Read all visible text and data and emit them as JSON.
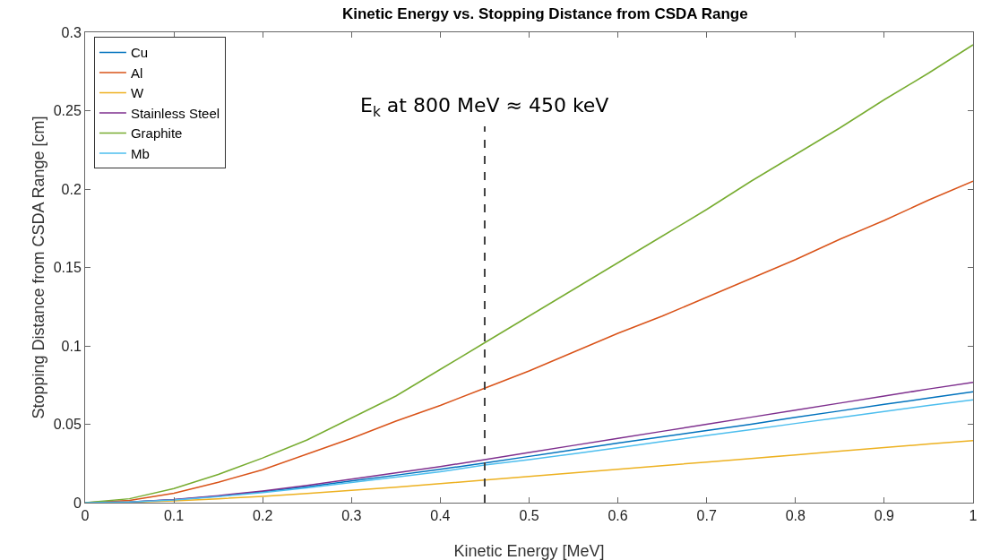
{
  "chart_data": {
    "type": "line",
    "title": "Kinetic Energy vs. Stopping Distance from CSDA Range",
    "xlabel": "Kinetic Energy [MeV]",
    "ylabel": "Stopping Distance from CSDA Range [cm]",
    "x": [
      0,
      0.05,
      0.1,
      0.15,
      0.2,
      0.25,
      0.3,
      0.35,
      0.4,
      0.45,
      0.5,
      0.55,
      0.6,
      0.65,
      0.7,
      0.75,
      0.8,
      0.85,
      0.9,
      0.95,
      1
    ],
    "series": [
      {
        "name": "Cu",
        "color": "#0072bd",
        "values": [
          0,
          0.0005,
          0.0019,
          0.0042,
          0.007,
          0.0102,
          0.0138,
          0.0175,
          0.0213,
          0.0253,
          0.0295,
          0.0337,
          0.038,
          0.042,
          0.046,
          0.05,
          0.0544,
          0.0585,
          0.0627,
          0.0667,
          0.0707
        ]
      },
      {
        "name": "Al",
        "color": "#d95319",
        "values": [
          0,
          0.0015,
          0.006,
          0.013,
          0.021,
          0.031,
          0.041,
          0.052,
          0.062,
          0.073,
          0.084,
          0.096,
          0.108,
          0.119,
          0.131,
          0.143,
          0.155,
          0.168,
          0.18,
          0.193,
          0.205
        ]
      },
      {
        "name": "W",
        "color": "#edb120",
        "values": [
          0,
          0.0003,
          0.0012,
          0.0025,
          0.004,
          0.0058,
          0.0078,
          0.0099,
          0.0121,
          0.0144,
          0.0167,
          0.019,
          0.0213,
          0.0236,
          0.0259,
          0.0282,
          0.0305,
          0.0328,
          0.0351,
          0.0374,
          0.0396
        ]
      },
      {
        "name": "Stainless Steel",
        "color": "#7e2f8e",
        "values": [
          0,
          0.0005,
          0.002,
          0.0045,
          0.0075,
          0.011,
          0.015,
          0.019,
          0.023,
          0.0274,
          0.032,
          0.0365,
          0.041,
          0.0455,
          0.05,
          0.0545,
          0.059,
          0.0635,
          0.068,
          0.0725,
          0.0767
        ]
      },
      {
        "name": "Graphite",
        "color": "#77ac30",
        "values": [
          0,
          0.0025,
          0.009,
          0.018,
          0.0285,
          0.04,
          0.054,
          0.068,
          0.085,
          0.102,
          0.119,
          0.136,
          0.153,
          0.17,
          0.187,
          0.205,
          0.222,
          0.239,
          0.257,
          0.274,
          0.292
        ]
      },
      {
        "name": "Mb",
        "color": "#4dbeee",
        "values": [
          0,
          0.0004,
          0.0017,
          0.0039,
          0.0065,
          0.0095,
          0.0128,
          0.0163,
          0.0197,
          0.024,
          0.0274,
          0.0312,
          0.035,
          0.039,
          0.0428,
          0.0466,
          0.0505,
          0.0543,
          0.0581,
          0.062,
          0.0656
        ]
      }
    ],
    "ref_lines": [
      {
        "axis": "x",
        "value": 0.45,
        "label": "E$_{k}$ at 800 MeV ≈ 450 keV",
        "color": "#404040",
        "line_style": "dashed"
      }
    ],
    "xlim": [
      0,
      1
    ],
    "xticks": [
      0,
      0.1,
      0.2,
      0.3,
      0.4,
      0.5,
      0.6,
      0.7,
      0.8,
      0.9,
      1
    ],
    "ylim": [
      0,
      0.3
    ],
    "yticks": [
      0,
      0.05,
      0.1,
      0.15,
      0.2,
      0.25,
      0.3
    ],
    "grid": false,
    "legend": "top left",
    "marker": "none",
    "line_style": "solid"
  }
}
